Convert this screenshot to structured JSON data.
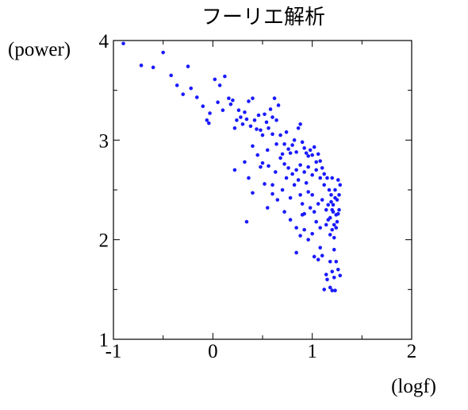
{
  "chart_data": {
    "type": "scatter",
    "title": "フーリエ解析",
    "xlabel": "(logf)",
    "ylabel": "(power)",
    "xlim": [
      -1,
      2
    ],
    "ylim": [
      1,
      4
    ],
    "x_ticks": [
      -1,
      0,
      1,
      2
    ],
    "x_tick_labels": [
      "-1",
      "0",
      "1",
      "2"
    ],
    "y_ticks": [
      1,
      2,
      3,
      4
    ],
    "y_tick_labels": [
      "1",
      "2",
      "3",
      "4"
    ],
    "grid": false,
    "marker_color": "#1a1aff",
    "points": [
      [
        -0.9,
        3.97
      ],
      [
        -0.72,
        3.75
      ],
      [
        -0.6,
        3.73
      ],
      [
        -0.5,
        3.88
      ],
      [
        -0.42,
        3.65
      ],
      [
        -0.36,
        3.55
      ],
      [
        -0.3,
        3.46
      ],
      [
        -0.25,
        3.74
      ],
      [
        -0.22,
        3.52
      ],
      [
        -0.16,
        3.43
      ],
      [
        -0.1,
        3.34
      ],
      [
        -0.06,
        3.2
      ],
      [
        -0.04,
        3.17
      ],
      [
        -0.03,
        3.27
      ],
      [
        0.02,
        3.61
      ],
      [
        0.05,
        3.38
      ],
      [
        0.07,
        3.55
      ],
      [
        0.1,
        3.3
      ],
      [
        0.12,
        3.64
      ],
      [
        0.16,
        3.42
      ],
      [
        0.18,
        3.36
      ],
      [
        0.2,
        3.4
      ],
      [
        0.22,
        3.12
      ],
      [
        0.24,
        3.2
      ],
      [
        0.26,
        3.3
      ],
      [
        0.28,
        3.23
      ],
      [
        0.3,
        3.16
      ],
      [
        0.32,
        3.28
      ],
      [
        0.34,
        3.21
      ],
      [
        0.36,
        3.39
      ],
      [
        0.38,
        3.14
      ],
      [
        0.4,
        3.42
      ],
      [
        0.42,
        3.2
      ],
      [
        0.44,
        3.11
      ],
      [
        0.46,
        3.25
      ],
      [
        0.48,
        3.1
      ],
      [
        0.5,
        3.05
      ],
      [
        0.52,
        3.26
      ],
      [
        0.54,
        3.18
      ],
      [
        0.56,
        3.12
      ],
      [
        0.58,
        3.31
      ],
      [
        0.6,
        3.23
      ],
      [
        0.62,
        3.42
      ],
      [
        0.64,
        3.2
      ],
      [
        0.66,
        3.35
      ],
      [
        0.4,
        2.94
      ],
      [
        0.45,
        2.85
      ],
      [
        0.5,
        2.77
      ],
      [
        0.55,
        2.9
      ],
      [
        0.6,
        3.06
      ],
      [
        0.64,
        2.96
      ],
      [
        0.68,
        3.05
      ],
      [
        0.7,
        2.86
      ],
      [
        0.72,
        2.96
      ],
      [
        0.74,
        3.08
      ],
      [
        0.76,
        2.91
      ],
      [
        0.78,
        2.87
      ],
      [
        0.8,
        2.95
      ],
      [
        0.82,
        3.0
      ],
      [
        0.84,
        2.88
      ],
      [
        0.86,
        3.12
      ],
      [
        0.88,
        3.16
      ],
      [
        0.9,
        2.98
      ],
      [
        0.92,
        2.92
      ],
      [
        0.94,
        2.87
      ],
      [
        0.96,
        2.84
      ],
      [
        0.98,
        2.9
      ],
      [
        1.0,
        2.85
      ],
      [
        1.02,
        2.93
      ],
      [
        1.04,
        2.78
      ],
      [
        1.06,
        2.86
      ],
      [
        1.08,
        2.79
      ],
      [
        1.1,
        2.72
      ],
      [
        0.68,
        2.82
      ],
      [
        0.72,
        2.76
      ],
      [
        0.76,
        2.72
      ],
      [
        0.8,
        2.66
      ],
      [
        0.84,
        2.7
      ],
      [
        0.88,
        2.75
      ],
      [
        0.92,
        2.68
      ],
      [
        0.96,
        2.73
      ],
      [
        1.0,
        2.65
      ],
      [
        1.04,
        2.7
      ],
      [
        1.08,
        2.62
      ],
      [
        1.12,
        2.66
      ],
      [
        0.22,
        2.7
      ],
      [
        0.32,
        2.78
      ],
      [
        0.36,
        2.62
      ],
      [
        0.4,
        2.47
      ],
      [
        0.48,
        2.73
      ],
      [
        0.52,
        2.56
      ],
      [
        0.56,
        2.74
      ],
      [
        0.6,
        2.55
      ],
      [
        0.63,
        2.68
      ],
      [
        0.7,
        2.5
      ],
      [
        0.74,
        2.62
      ],
      [
        0.78,
        2.42
      ],
      [
        0.82,
        2.55
      ],
      [
        0.86,
        2.6
      ],
      [
        0.88,
        2.45
      ],
      [
        0.9,
        2.36
      ],
      [
        0.92,
        2.26
      ],
      [
        0.94,
        2.57
      ],
      [
        0.96,
        2.48
      ],
      [
        0.98,
        2.32
      ],
      [
        1.0,
        2.45
      ],
      [
        1.02,
        2.28
      ],
      [
        1.04,
        2.18
      ],
      [
        1.06,
        2.36
      ],
      [
        1.08,
        2.12
      ],
      [
        1.1,
        2.4
      ],
      [
        1.12,
        2.55
      ],
      [
        1.14,
        2.3
      ],
      [
        1.16,
        2.2
      ],
      [
        1.18,
        2.05
      ],
      [
        1.19,
        2.45
      ],
      [
        1.2,
        2.62
      ],
      [
        1.21,
        2.35
      ],
      [
        1.22,
        2.15
      ],
      [
        1.23,
        2.5
      ],
      [
        1.24,
        2.25
      ],
      [
        1.25,
        2.4
      ],
      [
        1.26,
        2.6
      ],
      [
        1.27,
        2.3
      ],
      [
        1.28,
        2.55
      ],
      [
        1.15,
        2.62
      ],
      [
        1.17,
        2.5
      ],
      [
        1.19,
        2.38
      ],
      [
        1.21,
        2.28
      ],
      [
        1.23,
        2.42
      ],
      [
        1.25,
        2.18
      ],
      [
        1.27,
        2.45
      ],
      [
        1.18,
        2.22
      ],
      [
        1.2,
        2.1
      ],
      [
        1.22,
        2.02
      ],
      [
        1.24,
        2.12
      ],
      [
        1.26,
        2.26
      ],
      [
        1.16,
        2.35
      ],
      [
        1.14,
        2.15
      ],
      [
        1.2,
        2.3
      ],
      [
        0.55,
        2.32
      ],
      [
        0.6,
        2.46
      ],
      [
        0.65,
        2.4
      ],
      [
        0.72,
        2.28
      ],
      [
        0.78,
        2.2
      ],
      [
        0.84,
        2.12
      ],
      [
        0.88,
        2.04
      ],
      [
        0.92,
        2.1
      ],
      [
        0.96,
        2.0
      ],
      [
        1.0,
        2.06
      ],
      [
        0.34,
        2.18
      ],
      [
        0.84,
        1.87
      ],
      [
        0.9,
        2.25
      ],
      [
        1.02,
        1.83
      ],
      [
        1.06,
        1.8
      ],
      [
        1.08,
        1.92
      ],
      [
        1.1,
        1.84
      ],
      [
        1.18,
        1.78
      ],
      [
        1.2,
        1.68
      ],
      [
        1.22,
        1.9
      ],
      [
        1.24,
        1.78
      ],
      [
        1.26,
        1.7
      ],
      [
        1.28,
        1.64
      ],
      [
        1.15,
        1.6
      ],
      [
        1.18,
        1.52
      ],
      [
        1.2,
        1.49
      ],
      [
        1.23,
        1.49
      ],
      [
        1.12,
        1.5
      ],
      [
        1.14,
        1.65
      ],
      [
        1.22,
        1.62
      ]
    ]
  }
}
